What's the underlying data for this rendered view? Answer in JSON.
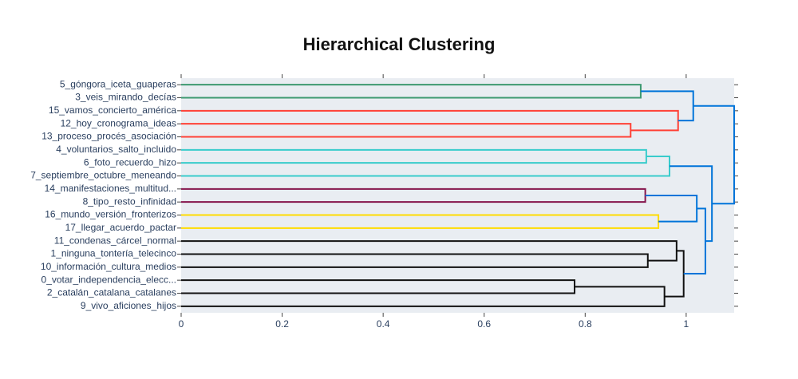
{
  "chart_data": {
    "type": "dendrogram",
    "title": "Hierarchical Clustering",
    "xlim": [
      0,
      1.095
    ],
    "xticks": [
      0,
      0.2,
      0.4,
      0.6,
      0.8,
      1
    ],
    "tree": {
      "distance": 1.095,
      "color": "#0074d9",
      "children": [
        {
          "distance": 1.014,
          "color": "#0074d9",
          "children": [
            {
              "distance": 0.91,
              "color": "#3d9970",
              "children": [
                {
                  "label": "5_góngora_iceta_guaperas"
                },
                {
                  "label": "3_veis_mirando_decías"
                }
              ]
            },
            {
              "distance": 0.984,
              "color": "#ff4136",
              "children": [
                {
                  "label": "15_vamos_concierto_américa"
                },
                {
                  "distance": 0.89,
                  "color": "#ff4136",
                  "children": [
                    {
                      "label": "12_hoy_cronograma_ideas"
                    },
                    {
                      "label": "13_proceso_procés_asociación"
                    }
                  ]
                }
              ]
            }
          ]
        },
        {
          "distance": 1.051,
          "color": "#0074d9",
          "children": [
            {
              "distance": 0.967,
              "color": "#39cccc",
              "children": [
                {
                  "distance": 0.921,
                  "color": "#39cccc",
                  "children": [
                    {
                      "label": "4_voluntarios_salto_incluido"
                    },
                    {
                      "label": "6_foto_recuerdo_hizo"
                    }
                  ]
                },
                {
                  "label": "7_septiembre_octubre_meneando"
                }
              ]
            },
            {
              "distance": 1.038,
              "color": "#0074d9",
              "children": [
                {
                  "distance": 1.021,
                  "color": "#0074d9",
                  "children": [
                    {
                      "distance": 0.919,
                      "color": "#85144b",
                      "children": [
                        {
                          "label": "14_manifestaciones_multitud..."
                        },
                        {
                          "label": "8_tipo_resto_infinidad"
                        }
                      ]
                    },
                    {
                      "distance": 0.945,
                      "color": "#ffdc00",
                      "children": [
                        {
                          "label": "16_mundo_versión_fronterizos"
                        },
                        {
                          "label": "17_llegar_acuerdo_pactar"
                        }
                      ]
                    }
                  ]
                },
                {
                  "distance": 0.995,
                  "color": "#111111",
                  "children": [
                    {
                      "distance": 0.981,
                      "color": "#111111",
                      "children": [
                        {
                          "label": "11_condenas_cárcel_normal"
                        },
                        {
                          "distance": 0.924,
                          "color": "#111111",
                          "children": [
                            {
                              "label": "1_ninguna_tontería_telecinco"
                            },
                            {
                              "label": "10_información_cultura_medios"
                            }
                          ]
                        }
                      ]
                    },
                    {
                      "distance": 0.957,
                      "color": "#111111",
                      "children": [
                        {
                          "distance": 0.779,
                          "color": "#111111",
                          "children": [
                            {
                              "label": "0_votar_independencia_elecc..."
                            },
                            {
                              "label": "2_catalán_catalana_catalanes"
                            }
                          ]
                        },
                        {
                          "label": "9_vivo_aficiones_hijos"
                        }
                      ]
                    }
                  ]
                }
              ]
            }
          ]
        }
      ]
    }
  }
}
